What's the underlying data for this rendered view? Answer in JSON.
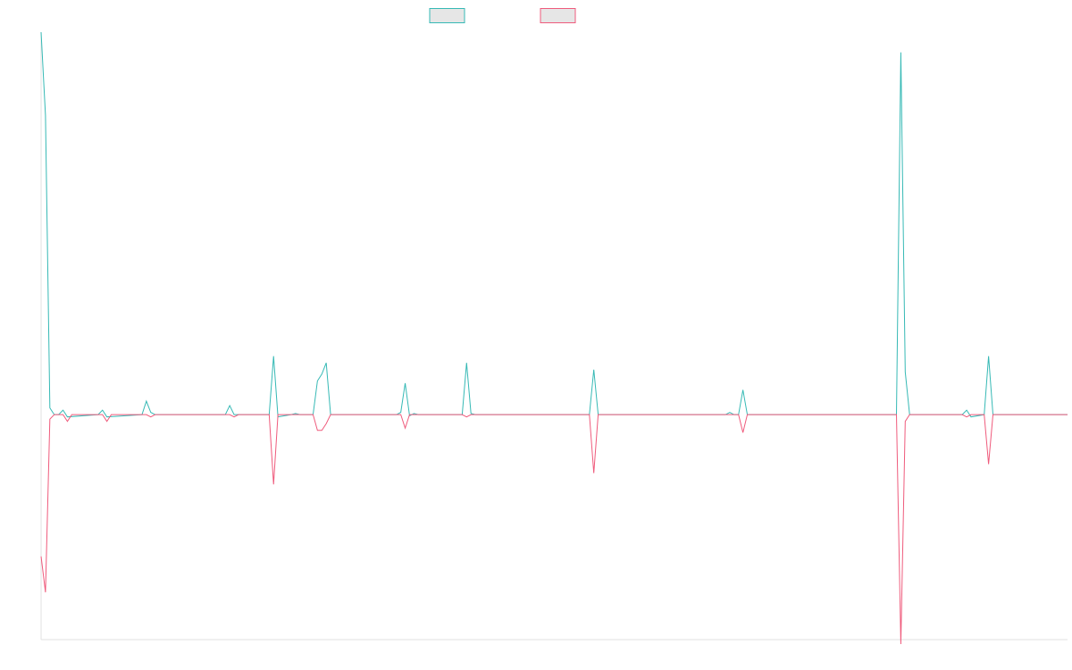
{
  "chart_data": {
    "type": "line",
    "title": "",
    "xlabel": "",
    "ylabel": "",
    "grid": false,
    "legend_position": "top-center",
    "x_count": 235,
    "ylim": [
      -1000,
      1700
    ],
    "series": [
      {
        "color": "#36b9b5",
        "fill": "#e6e6e6",
        "points": [
          [
            0,
            1700
          ],
          [
            1,
            1330
          ],
          [
            2,
            30
          ],
          [
            3,
            0
          ],
          [
            4,
            0
          ],
          [
            5,
            20
          ],
          [
            6,
            -10
          ],
          [
            13,
            0
          ],
          [
            14,
            20
          ],
          [
            15,
            -10
          ],
          [
            23,
            0
          ],
          [
            24,
            60
          ],
          [
            25,
            10
          ],
          [
            26,
            0
          ],
          [
            42,
            0
          ],
          [
            43,
            40
          ],
          [
            44,
            0
          ],
          [
            52,
            0
          ],
          [
            53,
            260
          ],
          [
            54,
            -10
          ],
          [
            57,
            0
          ],
          [
            58,
            5
          ],
          [
            59,
            0
          ],
          [
            62,
            0
          ],
          [
            63,
            150
          ],
          [
            64,
            180
          ],
          [
            65,
            230
          ],
          [
            66,
            0
          ],
          [
            81,
            0
          ],
          [
            82,
            10
          ],
          [
            83,
            140
          ],
          [
            84,
            -5
          ],
          [
            85,
            5
          ],
          [
            86,
            0
          ],
          [
            96,
            0
          ],
          [
            97,
            230
          ],
          [
            98,
            5
          ],
          [
            99,
            0
          ],
          [
            125,
            0
          ],
          [
            126,
            200
          ],
          [
            127,
            0
          ],
          [
            156,
            0
          ],
          [
            157,
            10
          ],
          [
            158,
            0
          ],
          [
            159,
            0
          ],
          [
            160,
            110
          ],
          [
            161,
            0
          ],
          [
            174,
            0
          ],
          [
            175,
            0
          ],
          [
            176,
            0
          ],
          [
            195,
            0
          ],
          [
            196,
            1610
          ],
          [
            197,
            190
          ],
          [
            198,
            0
          ],
          [
            210,
            0
          ],
          [
            211,
            20
          ],
          [
            212,
            -10
          ],
          [
            215,
            0
          ],
          [
            216,
            260
          ],
          [
            217,
            0
          ],
          [
            234,
            0
          ]
        ]
      },
      {
        "color": "#ef5b7c",
        "fill": "#e6e6e6",
        "points": [
          [
            0,
            -630
          ],
          [
            1,
            -790
          ],
          [
            2,
            -20
          ],
          [
            3,
            0
          ],
          [
            4,
            0
          ],
          [
            5,
            0
          ],
          [
            6,
            -30
          ],
          [
            7,
            0
          ],
          [
            13,
            0
          ],
          [
            14,
            0
          ],
          [
            15,
            -30
          ],
          [
            16,
            0
          ],
          [
            23,
            0
          ],
          [
            24,
            0
          ],
          [
            25,
            -10
          ],
          [
            26,
            0
          ],
          [
            42,
            0
          ],
          [
            43,
            0
          ],
          [
            44,
            -10
          ],
          [
            45,
            0
          ],
          [
            52,
            0
          ],
          [
            53,
            -310
          ],
          [
            54,
            0
          ],
          [
            62,
            0
          ],
          [
            63,
            -70
          ],
          [
            64,
            -70
          ],
          [
            65,
            -40
          ],
          [
            66,
            0
          ],
          [
            82,
            0
          ],
          [
            83,
            -60
          ],
          [
            84,
            0
          ],
          [
            96,
            0
          ],
          [
            97,
            -10
          ],
          [
            98,
            0
          ],
          [
            125,
            0
          ],
          [
            126,
            -260
          ],
          [
            127,
            0
          ],
          [
            156,
            0
          ],
          [
            159,
            0
          ],
          [
            160,
            -80
          ],
          [
            161,
            0
          ],
          [
            195,
            0
          ],
          [
            196,
            -1020
          ],
          [
            197,
            -30
          ],
          [
            198,
            0
          ],
          [
            210,
            0
          ],
          [
            211,
            -10
          ],
          [
            212,
            0
          ],
          [
            215,
            0
          ],
          [
            216,
            -220
          ],
          [
            217,
            0
          ],
          [
            234,
            0
          ]
        ]
      }
    ]
  }
}
